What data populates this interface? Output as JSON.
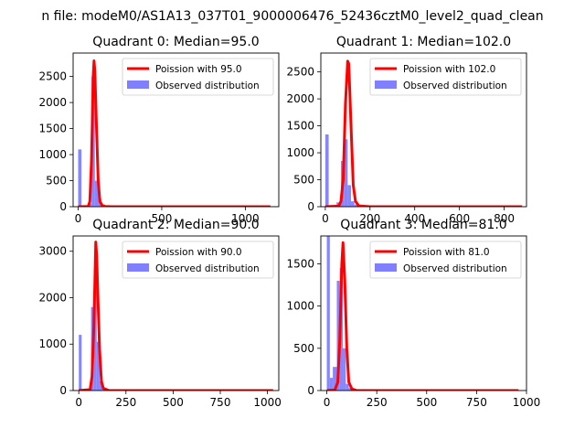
{
  "figure": {
    "suptitle": "n file: modeM0/AS1A13_037T01_9000006476_52436cztM0_level2_quad_clean"
  },
  "chart_data": [
    {
      "type": "bar",
      "title": "Quadrant 0: Median=95.0",
      "xlabel": "",
      "ylabel": "",
      "xlim": [
        -30,
        1200
      ],
      "ylim": [
        0,
        2950
      ],
      "xticks": [
        0,
        500,
        1000
      ],
      "yticks": [
        0,
        500,
        1000,
        1500,
        2000,
        2500
      ],
      "legend": {
        "position": "top-right",
        "entries": [
          "Poission with 95.0",
          "Observed distribution"
        ]
      },
      "series": [
        {
          "name": "Observed distribution",
          "kind": "histogram",
          "color": "#8080ff",
          "bins": [
            [
              0,
              20,
              1100
            ],
            [
              20,
              40,
              10
            ],
            [
              40,
              60,
              20
            ],
            [
              60,
              80,
              60
            ],
            [
              80,
              100,
              2500
            ],
            [
              100,
              120,
              500
            ],
            [
              120,
              140,
              150
            ],
            [
              140,
              160,
              40
            ],
            [
              160,
              1200,
              5
            ]
          ]
        },
        {
          "name": "Poission with 95.0",
          "kind": "line",
          "color": "#ff0000",
          "points": [
            [
              0,
              0
            ],
            [
              60,
              5
            ],
            [
              70,
              100
            ],
            [
              80,
              900
            ],
            [
              90,
              2500
            ],
            [
              95,
              2800
            ],
            [
              100,
              2600
            ],
            [
              110,
              1500
            ],
            [
              120,
              500
            ],
            [
              130,
              100
            ],
            [
              145,
              20
            ],
            [
              160,
              5
            ],
            [
              200,
              0
            ],
            [
              1150,
              0
            ]
          ]
        }
      ]
    },
    {
      "type": "bar",
      "title": "Quadrant 1: Median=102.0",
      "xlabel": "",
      "ylabel": "",
      "xlim": [
        -20,
        900
      ],
      "ylim": [
        0,
        2850
      ],
      "xticks": [
        0,
        200,
        400,
        600,
        800
      ],
      "yticks": [
        0,
        500,
        1000,
        1500,
        2000,
        2500
      ],
      "legend": {
        "position": "top-right",
        "entries": [
          "Poission with 102.0",
          "Observed distribution"
        ]
      },
      "series": [
        {
          "name": "Observed distribution",
          "kind": "histogram",
          "color": "#8080ff",
          "bins": [
            [
              0,
              15,
              1340
            ],
            [
              15,
              30,
              15
            ],
            [
              30,
              50,
              10
            ],
            [
              50,
              70,
              80
            ],
            [
              70,
              85,
              850
            ],
            [
              85,
              100,
              1250
            ],
            [
              100,
              115,
              400
            ],
            [
              115,
              130,
              100
            ],
            [
              130,
              150,
              40
            ],
            [
              150,
              880,
              5
            ]
          ]
        },
        {
          "name": "Poission with 102.0",
          "kind": "line",
          "color": "#ff0000",
          "points": [
            [
              0,
              0
            ],
            [
              60,
              10
            ],
            [
              70,
              100
            ],
            [
              80,
              500
            ],
            [
              90,
              1900
            ],
            [
              100,
              2700
            ],
            [
              105,
              2650
            ],
            [
              115,
              1500
            ],
            [
              125,
              400
            ],
            [
              135,
              100
            ],
            [
              150,
              15
            ],
            [
              200,
              0
            ],
            [
              880,
              0
            ]
          ]
        }
      ]
    },
    {
      "type": "bar",
      "title": "Quadrant 2: Median=90.0",
      "xlabel": "",
      "ylabel": "",
      "xlim": [
        -30,
        1060
      ],
      "ylim": [
        0,
        3330
      ],
      "xticks": [
        0,
        250,
        500,
        750,
        1000
      ],
      "yticks": [
        0,
        1000,
        2000,
        3000
      ],
      "legend": {
        "position": "top-right",
        "entries": [
          "Poission with 90.0",
          "Observed distribution"
        ]
      },
      "series": [
        {
          "name": "Observed distribution",
          "kind": "histogram",
          "color": "#8080ff",
          "bins": [
            [
              0,
              15,
              1200
            ],
            [
              15,
              40,
              10
            ],
            [
              40,
              65,
              30
            ],
            [
              65,
              80,
              1800
            ],
            [
              80,
              95,
              2600
            ],
            [
              95,
              110,
              1050
            ],
            [
              110,
              125,
              200
            ],
            [
              125,
              145,
              30
            ],
            [
              145,
              1040,
              5
            ]
          ]
        },
        {
          "name": "Poission with 90.0",
          "kind": "line",
          "color": "#ff0000",
          "points": [
            [
              0,
              0
            ],
            [
              60,
              20
            ],
            [
              70,
              300
            ],
            [
              80,
              1400
            ],
            [
              90,
              3200
            ],
            [
              95,
              2900
            ],
            [
              100,
              2200
            ],
            [
              110,
              900
            ],
            [
              120,
              200
            ],
            [
              130,
              50
            ],
            [
              160,
              0
            ],
            [
              1030,
              0
            ]
          ]
        }
      ]
    },
    {
      "type": "bar",
      "title": "Quadrant 3: Median=81.0",
      "xlabel": "",
      "ylabel": "",
      "xlim": [
        -30,
        1000
      ],
      "ylim": [
        0,
        1830
      ],
      "xticks": [
        0,
        250,
        500,
        750,
        1000
      ],
      "yticks": [
        0,
        500,
        1000,
        1500
      ],
      "legend": {
        "position": "top-right",
        "entries": [
          "Poission with 81.0",
          "Observed distribution"
        ]
      },
      "series": [
        {
          "name": "Observed distribution",
          "kind": "histogram",
          "color": "#8080ff",
          "bins": [
            [
              0,
              15,
              1830
            ],
            [
              15,
              30,
              150
            ],
            [
              30,
              50,
              280
            ],
            [
              50,
              65,
              1300
            ],
            [
              65,
              80,
              1450
            ],
            [
              80,
              95,
              500
            ],
            [
              95,
              110,
              80
            ],
            [
              110,
              130,
              30
            ],
            [
              130,
              960,
              5
            ]
          ]
        },
        {
          "name": "Poission with 81.0",
          "kind": "line",
          "color": "#ff0000",
          "points": [
            [
              0,
              0
            ],
            [
              40,
              5
            ],
            [
              55,
              100
            ],
            [
              65,
              600
            ],
            [
              75,
              1500
            ],
            [
              81,
              1750
            ],
            [
              90,
              1300
            ],
            [
              100,
              500
            ],
            [
              110,
              100
            ],
            [
              125,
              20
            ],
            [
              150,
              0
            ],
            [
              960,
              0
            ]
          ]
        }
      ]
    }
  ]
}
